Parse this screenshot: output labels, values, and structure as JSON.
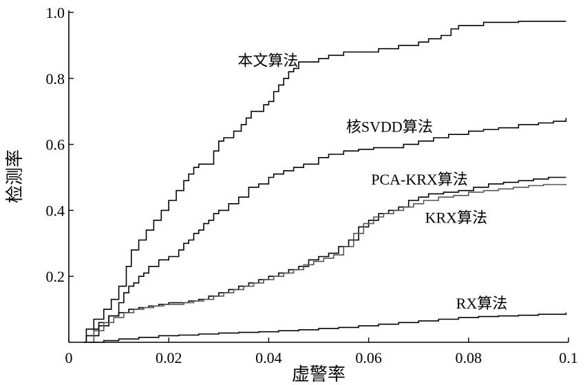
{
  "chart_data": {
    "type": "line",
    "title": "",
    "xlabel": "虚警率",
    "ylabel": "检测率",
    "xlim": [
      0,
      0.1
    ],
    "ylim": [
      0,
      1.0
    ],
    "x_ticks": [
      0,
      0.02,
      0.04,
      0.06,
      0.08,
      0.1
    ],
    "x_tick_labels": [
      "0",
      "0.02",
      "0.04",
      "0.06",
      "0.08",
      "0.1"
    ],
    "y_ticks": [
      0.2,
      0.4,
      0.6,
      0.8,
      1.0
    ],
    "y_tick_labels": [
      "0.2",
      "0.4",
      "0.6",
      "0.8",
      "1.0"
    ],
    "grid": false,
    "legend": "inline labels",
    "series": [
      {
        "name": "本文算法",
        "color": "#000000",
        "label_at": [
          0.0338,
          0.838
        ],
        "points": [
          [
            0.003,
            0.0
          ],
          [
            0.0035,
            0.04
          ],
          [
            0.005,
            0.07
          ],
          [
            0.007,
            0.1
          ],
          [
            0.0085,
            0.13
          ],
          [
            0.01,
            0.17
          ],
          [
            0.0115,
            0.23
          ],
          [
            0.0125,
            0.28
          ],
          [
            0.014,
            0.31
          ],
          [
            0.0155,
            0.34
          ],
          [
            0.017,
            0.37
          ],
          [
            0.0185,
            0.4
          ],
          [
            0.02,
            0.43
          ],
          [
            0.0215,
            0.46
          ],
          [
            0.023,
            0.49
          ],
          [
            0.024,
            0.51
          ],
          [
            0.025,
            0.53
          ],
          [
            0.026,
            0.54
          ],
          [
            0.0275,
            0.54
          ],
          [
            0.029,
            0.58
          ],
          [
            0.03,
            0.61
          ],
          [
            0.031,
            0.62
          ],
          [
            0.033,
            0.64
          ],
          [
            0.0345,
            0.66
          ],
          [
            0.0355,
            0.68
          ],
          [
            0.0365,
            0.7
          ],
          [
            0.0375,
            0.7
          ],
          [
            0.039,
            0.72
          ],
          [
            0.04,
            0.73
          ],
          [
            0.041,
            0.76
          ],
          [
            0.042,
            0.78
          ],
          [
            0.043,
            0.8
          ],
          [
            0.044,
            0.82
          ],
          [
            0.045,
            0.83
          ],
          [
            0.046,
            0.85
          ],
          [
            0.048,
            0.85
          ],
          [
            0.05,
            0.86
          ],
          [
            0.052,
            0.87
          ],
          [
            0.055,
            0.88
          ],
          [
            0.058,
            0.88
          ],
          [
            0.062,
            0.89
          ],
          [
            0.066,
            0.9
          ],
          [
            0.07,
            0.91
          ],
          [
            0.072,
            0.92
          ],
          [
            0.0745,
            0.93
          ],
          [
            0.0765,
            0.95
          ],
          [
            0.078,
            0.96
          ],
          [
            0.08,
            0.96
          ],
          [
            0.083,
            0.97
          ],
          [
            0.086,
            0.97
          ],
          [
            0.09,
            0.973
          ],
          [
            0.0995,
            0.973
          ]
        ]
      },
      {
        "name": "核SVDD算法",
        "color": "#000000",
        "label_at": [
          0.0555,
          0.638
        ],
        "points": [
          [
            0.003,
            0.0
          ],
          [
            0.0035,
            0.02
          ],
          [
            0.006,
            0.05
          ],
          [
            0.008,
            0.08
          ],
          [
            0.01,
            0.12
          ],
          [
            0.011,
            0.15
          ],
          [
            0.012,
            0.17
          ],
          [
            0.013,
            0.18
          ],
          [
            0.014,
            0.2
          ],
          [
            0.015,
            0.21
          ],
          [
            0.016,
            0.23
          ],
          [
            0.018,
            0.25
          ],
          [
            0.02,
            0.26
          ],
          [
            0.022,
            0.28
          ],
          [
            0.023,
            0.3
          ],
          [
            0.024,
            0.31
          ],
          [
            0.025,
            0.33
          ],
          [
            0.026,
            0.34
          ],
          [
            0.027,
            0.36
          ],
          [
            0.028,
            0.37
          ],
          [
            0.029,
            0.39
          ],
          [
            0.03,
            0.4
          ],
          [
            0.032,
            0.42
          ],
          [
            0.034,
            0.44
          ],
          [
            0.036,
            0.47
          ],
          [
            0.038,
            0.48
          ],
          [
            0.04,
            0.5
          ],
          [
            0.041,
            0.51
          ],
          [
            0.043,
            0.52
          ],
          [
            0.045,
            0.53
          ],
          [
            0.047,
            0.54
          ],
          [
            0.05,
            0.56
          ],
          [
            0.052,
            0.57
          ],
          [
            0.055,
            0.58
          ],
          [
            0.058,
            0.585
          ],
          [
            0.061,
            0.59
          ],
          [
            0.064,
            0.59
          ],
          [
            0.067,
            0.6
          ],
          [
            0.07,
            0.61
          ],
          [
            0.073,
            0.62
          ],
          [
            0.076,
            0.63
          ],
          [
            0.08,
            0.64
          ],
          [
            0.083,
            0.645
          ],
          [
            0.086,
            0.65
          ],
          [
            0.09,
            0.66
          ],
          [
            0.094,
            0.665
          ],
          [
            0.097,
            0.67
          ],
          [
            0.0995,
            0.68
          ]
        ]
      },
      {
        "name": "PCA-KRX算法",
        "color": "#000000",
        "label_at": [
          0.0605,
          0.478
        ],
        "points": [
          [
            0.004,
            0.0
          ],
          [
            0.005,
            0.04
          ],
          [
            0.006,
            0.06
          ],
          [
            0.008,
            0.08
          ],
          [
            0.01,
            0.09
          ],
          [
            0.012,
            0.1
          ],
          [
            0.014,
            0.105
          ],
          [
            0.016,
            0.11
          ],
          [
            0.018,
            0.115
          ],
          [
            0.02,
            0.12
          ],
          [
            0.022,
            0.12
          ],
          [
            0.024,
            0.125
          ],
          [
            0.026,
            0.13
          ],
          [
            0.028,
            0.14
          ],
          [
            0.03,
            0.15
          ],
          [
            0.032,
            0.16
          ],
          [
            0.034,
            0.17
          ],
          [
            0.036,
            0.18
          ],
          [
            0.038,
            0.19
          ],
          [
            0.04,
            0.2
          ],
          [
            0.042,
            0.21
          ],
          [
            0.044,
            0.22
          ],
          [
            0.046,
            0.23
          ],
          [
            0.048,
            0.25
          ],
          [
            0.05,
            0.26
          ],
          [
            0.052,
            0.27
          ],
          [
            0.054,
            0.29
          ],
          [
            0.056,
            0.31
          ],
          [
            0.058,
            0.35
          ],
          [
            0.06,
            0.37
          ],
          [
            0.062,
            0.39
          ],
          [
            0.064,
            0.4
          ],
          [
            0.066,
            0.41
          ],
          [
            0.068,
            0.43
          ],
          [
            0.07,
            0.44
          ],
          [
            0.072,
            0.45
          ],
          [
            0.075,
            0.455
          ],
          [
            0.078,
            0.46
          ],
          [
            0.081,
            0.47
          ],
          [
            0.084,
            0.48
          ],
          [
            0.087,
            0.485
          ],
          [
            0.09,
            0.49
          ],
          [
            0.093,
            0.495
          ],
          [
            0.096,
            0.5
          ],
          [
            0.0995,
            0.5
          ]
        ]
      },
      {
        "name": "KRX算法",
        "color": "#555555",
        "label_at": [
          0.0713,
          0.362
        ],
        "points": [
          [
            0.004,
            0.0
          ],
          [
            0.005,
            0.035
          ],
          [
            0.007,
            0.06
          ],
          [
            0.009,
            0.075
          ],
          [
            0.011,
            0.09
          ],
          [
            0.013,
            0.1
          ],
          [
            0.015,
            0.105
          ],
          [
            0.017,
            0.11
          ],
          [
            0.019,
            0.115
          ],
          [
            0.021,
            0.115
          ],
          [
            0.023,
            0.12
          ],
          [
            0.025,
            0.125
          ],
          [
            0.027,
            0.13
          ],
          [
            0.029,
            0.14
          ],
          [
            0.031,
            0.15
          ],
          [
            0.033,
            0.16
          ],
          [
            0.035,
            0.17
          ],
          [
            0.037,
            0.18
          ],
          [
            0.039,
            0.19
          ],
          [
            0.041,
            0.2
          ],
          [
            0.043,
            0.21
          ],
          [
            0.045,
            0.22
          ],
          [
            0.047,
            0.235
          ],
          [
            0.049,
            0.245
          ],
          [
            0.051,
            0.255
          ],
          [
            0.053,
            0.265
          ],
          [
            0.055,
            0.29
          ],
          [
            0.057,
            0.33
          ],
          [
            0.059,
            0.36
          ],
          [
            0.061,
            0.38
          ],
          [
            0.063,
            0.39
          ],
          [
            0.065,
            0.4
          ],
          [
            0.067,
            0.41
          ],
          [
            0.069,
            0.42
          ],
          [
            0.071,
            0.43
          ],
          [
            0.074,
            0.44
          ],
          [
            0.077,
            0.445
          ],
          [
            0.08,
            0.455
          ],
          [
            0.083,
            0.46
          ],
          [
            0.086,
            0.465
          ],
          [
            0.089,
            0.47
          ],
          [
            0.092,
            0.475
          ],
          [
            0.095,
            0.478
          ],
          [
            0.0995,
            0.48
          ]
        ]
      },
      {
        "name": "RX算法",
        "color": "#000000",
        "label_at": [
          0.0775,
          0.102
        ],
        "points": [
          [
            0.005,
            0.0
          ],
          [
            0.007,
            0.005
          ],
          [
            0.01,
            0.01
          ],
          [
            0.014,
            0.015
          ],
          [
            0.018,
            0.02
          ],
          [
            0.022,
            0.022
          ],
          [
            0.026,
            0.025
          ],
          [
            0.03,
            0.028
          ],
          [
            0.034,
            0.03
          ],
          [
            0.038,
            0.032
          ],
          [
            0.042,
            0.035
          ],
          [
            0.046,
            0.038
          ],
          [
            0.05,
            0.042
          ],
          [
            0.054,
            0.045
          ],
          [
            0.058,
            0.05
          ],
          [
            0.062,
            0.055
          ],
          [
            0.066,
            0.06
          ],
          [
            0.07,
            0.065
          ],
          [
            0.074,
            0.07
          ],
          [
            0.078,
            0.075
          ],
          [
            0.082,
            0.078
          ],
          [
            0.086,
            0.08
          ],
          [
            0.09,
            0.082
          ],
          [
            0.094,
            0.085
          ],
          [
            0.0995,
            0.09
          ]
        ]
      }
    ]
  }
}
